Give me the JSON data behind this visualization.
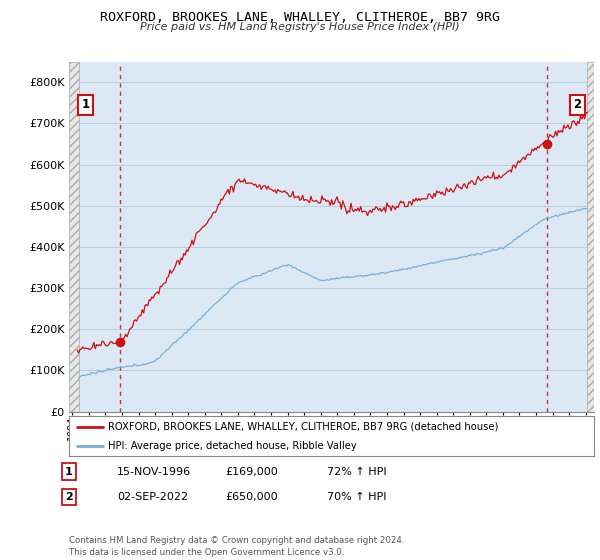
{
  "title": "ROXFORD, BROOKES LANE, WHALLEY, CLITHEROE, BB7 9RG",
  "subtitle": "Price paid vs. HM Land Registry's House Price Index (HPI)",
  "ylim": [
    0,
    850000
  ],
  "yticks": [
    0,
    100000,
    200000,
    300000,
    400000,
    500000,
    600000,
    700000,
    800000
  ],
  "ytick_labels": [
    "£0",
    "£100K",
    "£200K",
    "£300K",
    "£400K",
    "£500K",
    "£600K",
    "£700K",
    "£800K"
  ],
  "xlim_start": 1993.8,
  "xlim_end": 2025.5,
  "data_start": 1994.4,
  "data_end": 2025.1,
  "sale1_date": 1996.87,
  "sale1_price": 169000,
  "sale2_date": 2022.67,
  "sale2_price": 650000,
  "hpi_color": "#7bafd4",
  "price_color": "#cc1111",
  "annotation1_label": "1",
  "annotation2_label": "2",
  "legend_line1": "ROXFORD, BROOKES LANE, WHALLEY, CLITHEROE, BB7 9RG (detached house)",
  "legend_line2": "HPI: Average price, detached house, Ribble Valley",
  "table_row1_num": "1",
  "table_row1_date": "15-NOV-1996",
  "table_row1_price": "£169,000",
  "table_row1_hpi": "72% ↑ HPI",
  "table_row2_num": "2",
  "table_row2_date": "02-SEP-2022",
  "table_row2_price": "£650,000",
  "table_row2_hpi": "70% ↑ HPI",
  "footnote": "Contains HM Land Registry data © Crown copyright and database right 2024.\nThis data is licensed under the Open Government Licence v3.0.",
  "background_color": "#ffffff",
  "plot_bg_color": "#dce9f5",
  "grid_color": "#b8cfe0",
  "hatch_bg_color": "#e8e8e8"
}
